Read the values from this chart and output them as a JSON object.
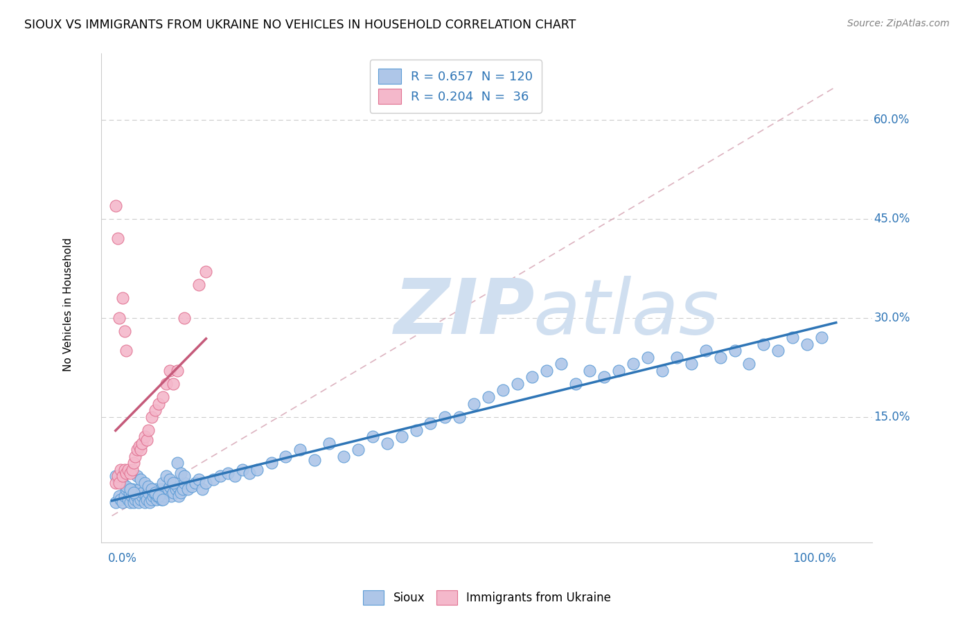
{
  "title": "SIOUX VS IMMIGRANTS FROM UKRAINE NO VEHICLES IN HOUSEHOLD CORRELATION CHART",
  "source": "Source: ZipAtlas.com",
  "ylabel": "No Vehicles in Household",
  "ytick_vals": [
    0.15,
    0.3,
    0.45,
    0.6
  ],
  "ytick_labels": [
    "15.0%",
    "30.0%",
    "45.0%",
    "60.0%"
  ],
  "legend1_R": "0.657",
  "legend1_N": "120",
  "legend2_R": "0.204",
  "legend2_N": " 36",
  "sioux_color": "#aec6e8",
  "sioux_edge_color": "#5b9bd5",
  "ukraine_color": "#f4b8cb",
  "ukraine_edge_color": "#e07090",
  "sioux_line_color": "#2e75b6",
  "ukraine_line_color": "#c55a7a",
  "diag_color": "#d0a0b0",
  "watermark_color": "#d0dff0",
  "background_color": "#ffffff",
  "xlim": [
    0.0,
    1.0
  ],
  "ylim": [
    0.0,
    0.65
  ],
  "sioux_x": [
    0.005,
    0.01,
    0.012,
    0.015,
    0.018,
    0.02,
    0.022,
    0.024,
    0.025,
    0.027,
    0.028,
    0.03,
    0.032,
    0.034,
    0.035,
    0.037,
    0.038,
    0.04,
    0.042,
    0.043,
    0.045,
    0.047,
    0.048,
    0.05,
    0.052,
    0.054,
    0.055,
    0.057,
    0.058,
    0.06,
    0.062,
    0.063,
    0.065,
    0.067,
    0.068,
    0.07,
    0.072,
    0.075,
    0.078,
    0.08,
    0.082,
    0.085,
    0.088,
    0.09,
    0.092,
    0.095,
    0.098,
    0.1,
    0.105,
    0.11,
    0.115,
    0.12,
    0.125,
    0.13,
    0.14,
    0.15,
    0.16,
    0.17,
    0.18,
    0.19,
    0.2,
    0.22,
    0.24,
    0.26,
    0.28,
    0.3,
    0.32,
    0.34,
    0.36,
    0.38,
    0.4,
    0.42,
    0.44,
    0.46,
    0.48,
    0.5,
    0.52,
    0.54,
    0.56,
    0.58,
    0.6,
    0.62,
    0.64,
    0.66,
    0.68,
    0.7,
    0.72,
    0.74,
    0.76,
    0.78,
    0.8,
    0.82,
    0.84,
    0.86,
    0.88,
    0.9,
    0.92,
    0.94,
    0.96,
    0.98,
    0.005,
    0.01,
    0.015,
    0.02,
    0.025,
    0.03,
    0.035,
    0.04,
    0.045,
    0.05,
    0.055,
    0.06,
    0.065,
    0.07,
    0.075,
    0.08,
    0.085,
    0.09,
    0.095,
    0.1
  ],
  "sioux_y": [
    0.02,
    0.03,
    0.025,
    0.02,
    0.03,
    0.04,
    0.025,
    0.035,
    0.02,
    0.03,
    0.04,
    0.02,
    0.025,
    0.03,
    0.035,
    0.02,
    0.04,
    0.025,
    0.03,
    0.035,
    0.02,
    0.03,
    0.025,
    0.035,
    0.02,
    0.04,
    0.025,
    0.03,
    0.035,
    0.04,
    0.025,
    0.03,
    0.035,
    0.04,
    0.025,
    0.05,
    0.03,
    0.035,
    0.04,
    0.045,
    0.03,
    0.035,
    0.04,
    0.045,
    0.03,
    0.035,
    0.04,
    0.05,
    0.04,
    0.045,
    0.05,
    0.055,
    0.04,
    0.05,
    0.055,
    0.06,
    0.065,
    0.06,
    0.07,
    0.065,
    0.07,
    0.08,
    0.09,
    0.1,
    0.085,
    0.11,
    0.09,
    0.1,
    0.12,
    0.11,
    0.12,
    0.13,
    0.14,
    0.15,
    0.15,
    0.17,
    0.18,
    0.19,
    0.2,
    0.21,
    0.22,
    0.23,
    0.2,
    0.22,
    0.21,
    0.22,
    0.23,
    0.24,
    0.22,
    0.24,
    0.23,
    0.25,
    0.24,
    0.25,
    0.23,
    0.26,
    0.25,
    0.27,
    0.26,
    0.27,
    0.06,
    0.055,
    0.05,
    0.045,
    0.04,
    0.035,
    0.06,
    0.055,
    0.05,
    0.045,
    0.04,
    0.035,
    0.03,
    0.025,
    0.06,
    0.055,
    0.05,
    0.08,
    0.065,
    0.06
  ],
  "ukraine_x": [
    0.005,
    0.008,
    0.01,
    0.012,
    0.015,
    0.018,
    0.02,
    0.022,
    0.025,
    0.028,
    0.03,
    0.032,
    0.035,
    0.038,
    0.04,
    0.042,
    0.045,
    0.048,
    0.05,
    0.055,
    0.06,
    0.065,
    0.07,
    0.075,
    0.08,
    0.085,
    0.09,
    0.1,
    0.12,
    0.13,
    0.005,
    0.008,
    0.01,
    0.015,
    0.018,
    0.02
  ],
  "ukraine_y": [
    0.05,
    0.06,
    0.05,
    0.07,
    0.06,
    0.07,
    0.065,
    0.07,
    0.065,
    0.07,
    0.08,
    0.09,
    0.1,
    0.105,
    0.1,
    0.11,
    0.12,
    0.115,
    0.13,
    0.15,
    0.16,
    0.17,
    0.18,
    0.2,
    0.22,
    0.2,
    0.22,
    0.3,
    0.35,
    0.37,
    0.47,
    0.42,
    0.3,
    0.33,
    0.28,
    0.25
  ]
}
